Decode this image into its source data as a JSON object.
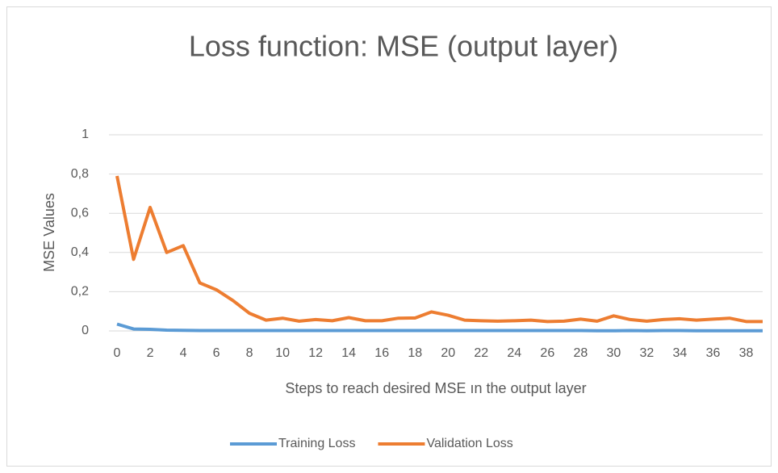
{
  "chart_data": {
    "type": "line",
    "title": "Loss function: MSE (output layer)",
    "y_label": "MSE Values",
    "x_label": "Steps to reach desired MSE ın the output layer",
    "x": [
      0,
      1,
      2,
      3,
      4,
      5,
      6,
      7,
      8,
      9,
      10,
      11,
      12,
      13,
      14,
      15,
      16,
      17,
      18,
      19,
      20,
      21,
      22,
      23,
      24,
      25,
      26,
      27,
      28,
      29,
      30,
      31,
      32,
      33,
      34,
      35,
      36,
      37,
      38,
      39
    ],
    "xlim": [
      0,
      39
    ],
    "xticks": [
      0,
      2,
      4,
      6,
      8,
      10,
      12,
      14,
      16,
      18,
      20,
      22,
      24,
      26,
      28,
      30,
      32,
      34,
      36,
      38
    ],
    "ylim": [
      0,
      1
    ],
    "yticks": [
      0,
      {
        "value": 0.2,
        "label": "0,2"
      },
      {
        "value": 0.4,
        "label": "0,4"
      },
      {
        "value": 0.6,
        "label": "0,6"
      },
      {
        "value": 0.8,
        "label": "0,8"
      },
      1
    ],
    "grid": true,
    "legend": "bottom",
    "series": [
      {
        "name": "Training Loss",
        "color": "#5b9bd5",
        "values": [
          0.035,
          0.01,
          0.008,
          0.004,
          0.003,
          0.002,
          0.002,
          0.002,
          0.002,
          0.002,
          0.002,
          0.002,
          0.002,
          0.002,
          0.002,
          0.002,
          0.002,
          0.002,
          0.002,
          0.002,
          0.002,
          0.002,
          0.002,
          0.002,
          0.002,
          0.002,
          0.002,
          0.002,
          0.002,
          0.001,
          0.001,
          0.002,
          0.001,
          0.002,
          0.002,
          0.001,
          0.001,
          0.001,
          0.001,
          0.001
        ]
      },
      {
        "name": "Validation Loss",
        "color": "#ed7d31",
        "values": [
          0.79,
          0.365,
          0.63,
          0.4,
          0.435,
          0.245,
          0.21,
          0.155,
          0.09,
          0.055,
          0.065,
          0.05,
          0.058,
          0.052,
          0.068,
          0.052,
          0.052,
          0.065,
          0.066,
          0.097,
          0.08,
          0.055,
          0.052,
          0.05,
          0.052,
          0.055,
          0.048,
          0.05,
          0.06,
          0.05,
          0.077,
          0.058,
          0.05,
          0.058,
          0.062,
          0.055,
          0.06,
          0.065,
          0.048,
          0.048
        ]
      }
    ]
  }
}
